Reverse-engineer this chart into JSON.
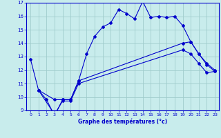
{
  "xlabel": "Graphe des températures (°c)",
  "background_color": "#c8ecec",
  "line_color": "#0000cc",
  "grid_color": "#a0cccc",
  "xlim": [
    -0.5,
    23.5
  ],
  "ylim": [
    9,
    17
  ],
  "xticks": [
    0,
    1,
    2,
    3,
    4,
    5,
    6,
    7,
    8,
    9,
    10,
    11,
    12,
    13,
    14,
    15,
    16,
    17,
    18,
    19,
    20,
    21,
    22,
    23
  ],
  "yticks": [
    9,
    10,
    11,
    12,
    13,
    14,
    15,
    16,
    17
  ],
  "line1_x": [
    0,
    1,
    2,
    3,
    4,
    5,
    6,
    7,
    8,
    9,
    10,
    11,
    12,
    13,
    14,
    15,
    16,
    17,
    18,
    19,
    20,
    21,
    22,
    23
  ],
  "line1_y": [
    12.8,
    10.5,
    9.8,
    8.6,
    9.8,
    9.8,
    11.2,
    13.2,
    14.5,
    15.2,
    15.5,
    16.5,
    16.2,
    15.8,
    17.1,
    15.9,
    16.0,
    15.9,
    16.0,
    15.3,
    14.1,
    13.2,
    12.4,
    11.9
  ],
  "line2_x": [
    1,
    3,
    4,
    5,
    6,
    19,
    20,
    21,
    22,
    23
  ],
  "line2_y": [
    10.5,
    9.8,
    9.8,
    9.8,
    11.2,
    14.0,
    14.1,
    13.2,
    12.5,
    12.0
  ],
  "line3_x": [
    1,
    3,
    4,
    5,
    6,
    19,
    20,
    21,
    22,
    23
  ],
  "line3_y": [
    10.5,
    8.7,
    9.7,
    9.7,
    11.0,
    13.5,
    13.2,
    12.5,
    11.8,
    11.9
  ]
}
